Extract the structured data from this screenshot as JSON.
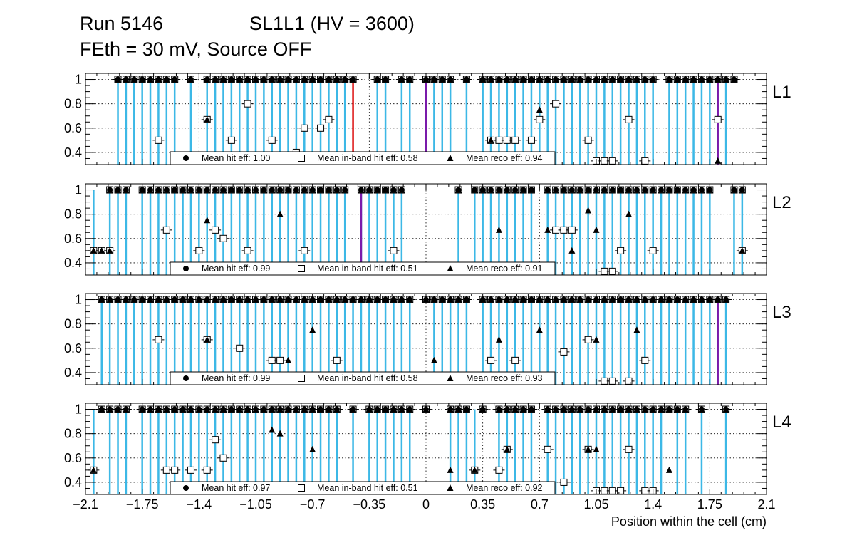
{
  "header": {
    "run": "Run 5146",
    "chamber": "SL1L1 (HV = 3600)",
    "conditions": "FEth = 30 mV, Source OFF"
  },
  "chart_data": {
    "type": "scatter",
    "xlabel": "Position within the cell (cm)",
    "xlim": [
      -2.1,
      2.1
    ],
    "xticks": [
      -2.1,
      -1.75,
      -1.4,
      -1.05,
      -0.7,
      -0.35,
      0,
      0.35,
      0.7,
      1.05,
      1.4,
      1.75,
      2.1
    ],
    "xtick_labels": [
      "−2.1",
      "−1.75",
      "−1.4",
      "−1.05",
      "−0.7",
      "−0.35",
      "0",
      "0.35",
      "0.7",
      "1.05",
      "1.4",
      "1.75",
      "2.1"
    ],
    "ylim": [
      0.3,
      1.05
    ],
    "yticks": [
      0.4,
      0.6,
      0.8,
      1
    ],
    "ytick_labels": [
      "0.4",
      "0.6",
      "0.8",
      "1"
    ],
    "grid": true,
    "colors": {
      "cyan": "#3cb8e6",
      "red": "#dd1111",
      "purple": "#7a1aaa"
    },
    "marker_legend": [
      {
        "marker": "filled-circle",
        "label": "Mean hit  eff:"
      },
      {
        "marker": "open-square",
        "label": "Mean in-band hit eff:"
      },
      {
        "marker": "filled-triangle",
        "label": "Mean reco eff:"
      }
    ],
    "panels": [
      {
        "label": "L1",
        "mean_hit_eff": "1.00",
        "mean_inband_eff": "0.58",
        "mean_reco_eff": "0.94",
        "hit_x": [
          -1.9,
          -1.85,
          -1.8,
          -1.75,
          -1.7,
          -1.65,
          -1.6,
          -1.55,
          -1.45,
          -1.35,
          -1.3,
          -1.25,
          -1.2,
          -1.15,
          -1.1,
          -1.05,
          -1.0,
          -0.95,
          -0.9,
          -0.85,
          -0.8,
          -0.75,
          -0.7,
          -0.65,
          -0.6,
          -0.55,
          -0.5,
          -0.45,
          -0.3,
          -0.25,
          -0.15,
          -0.1,
          0.0,
          0.05,
          0.1,
          0.15,
          0.25,
          0.35,
          0.4,
          0.45,
          0.5,
          0.55,
          0.6,
          0.65,
          0.7,
          0.75,
          0.8,
          0.85,
          0.9,
          0.95,
          1.0,
          1.05,
          1.1,
          1.15,
          1.2,
          1.25,
          1.3,
          1.35,
          1.4,
          1.5,
          1.55,
          1.6,
          1.65,
          1.7,
          1.75,
          1.8,
          1.85,
          1.9
        ],
        "square_pts": [
          [
            -1.65,
            0.5
          ],
          [
            -1.35,
            0.67
          ],
          [
            -1.2,
            0.5
          ],
          [
            -1.1,
            0.8
          ],
          [
            -0.95,
            0.5
          ],
          [
            -0.8,
            0.4
          ],
          [
            -0.75,
            0.6
          ],
          [
            -0.65,
            0.6
          ],
          [
            -0.6,
            0.67
          ],
          [
            0.4,
            0.5
          ],
          [
            0.45,
            0.5
          ],
          [
            0.5,
            0.5
          ],
          [
            0.55,
            0.5
          ],
          [
            0.65,
            0.5
          ],
          [
            0.7,
            0.67
          ],
          [
            0.8,
            0.8
          ],
          [
            1.0,
            0.5
          ],
          [
            1.05,
            0.33
          ],
          [
            1.1,
            0.33
          ],
          [
            1.15,
            0.33
          ],
          [
            1.25,
            0.67
          ],
          [
            1.35,
            0.33
          ],
          [
            1.8,
            0.67
          ]
        ],
        "tri_pts": [
          [
            -1.35,
            0.67
          ],
          [
            0.4,
            0.5
          ],
          [
            0.7,
            0.75
          ],
          [
            1.8,
            0.33
          ]
        ],
        "cyan_lines": [
          -1.9,
          -1.85,
          -1.8,
          -1.75,
          -1.7,
          -1.65,
          -1.6,
          -1.55,
          -1.45,
          -1.35,
          -1.3,
          -1.25,
          -1.2,
          -1.15,
          -1.1,
          -1.05,
          -1.0,
          -0.95,
          -0.9,
          -0.85,
          -0.8,
          -0.75,
          -0.7,
          -0.65,
          -0.6,
          -0.55,
          -0.5,
          -0.3,
          -0.25,
          -0.15,
          -0.1,
          0.05,
          0.1,
          0.15,
          0.25,
          0.35,
          0.4,
          0.45,
          0.5,
          0.55,
          0.6,
          0.65,
          0.7,
          0.75,
          0.8,
          0.85,
          0.9,
          0.95,
          1.0,
          1.05,
          1.1,
          1.15,
          1.2,
          1.25,
          1.3,
          1.35,
          1.4,
          1.5,
          1.55,
          1.6,
          1.65,
          1.7,
          1.75,
          1.85
        ],
        "red_lines": [
          -0.45
        ],
        "purple_lines": [
          0.0,
          1.8
        ]
      },
      {
        "label": "L2",
        "mean_hit_eff": "0.99",
        "mean_inband_eff": "0.51",
        "mean_reco_eff": "0.91",
        "hit_x": [
          -1.95,
          -1.9,
          -1.85,
          -1.75,
          -1.7,
          -1.65,
          -1.6,
          -1.55,
          -1.5,
          -1.45,
          -1.4,
          -1.35,
          -1.3,
          -1.25,
          -1.2,
          -1.15,
          -1.1,
          -1.05,
          -1.0,
          -0.95,
          -0.9,
          -0.85,
          -0.8,
          -0.75,
          -0.7,
          -0.65,
          -0.6,
          -0.55,
          -0.5,
          -0.4,
          -0.35,
          -0.3,
          -0.25,
          -0.2,
          -0.15,
          0.2,
          0.3,
          0.35,
          0.4,
          0.45,
          0.5,
          0.55,
          0.6,
          0.65,
          0.75,
          0.8,
          0.85,
          0.9,
          0.95,
          1.0,
          1.05,
          1.1,
          1.15,
          1.2,
          1.25,
          1.3,
          1.35,
          1.4,
          1.45,
          1.5,
          1.55,
          1.6,
          1.65,
          1.7,
          1.75,
          1.9,
          1.95
        ],
        "square_pts": [
          [
            -2.05,
            0.5
          ],
          [
            -2.0,
            0.5
          ],
          [
            -1.95,
            0.5
          ],
          [
            -1.6,
            0.67
          ],
          [
            -1.4,
            0.5
          ],
          [
            -1.3,
            0.67
          ],
          [
            -1.25,
            0.6
          ],
          [
            -1.1,
            0.5
          ],
          [
            -0.75,
            0.5
          ],
          [
            -0.2,
            0.5
          ],
          [
            0.8,
            0.67
          ],
          [
            0.85,
            0.67
          ],
          [
            0.9,
            0.67
          ],
          [
            1.1,
            0.33
          ],
          [
            1.15,
            0.33
          ],
          [
            1.2,
            0.5
          ],
          [
            1.4,
            0.5
          ],
          [
            1.95,
            0.5
          ]
        ],
        "tri_pts": [
          [
            -2.05,
            0.5
          ],
          [
            -2.0,
            0.5
          ],
          [
            -1.95,
            0.5
          ],
          [
            -1.35,
            0.75
          ],
          [
            -0.9,
            0.8
          ],
          [
            0.45,
            0.67
          ],
          [
            0.75,
            0.67
          ],
          [
            0.9,
            0.5
          ],
          [
            1.0,
            0.83
          ],
          [
            1.05,
            0.67
          ],
          [
            1.25,
            0.8
          ],
          [
            1.95,
            0.5
          ]
        ],
        "cyan_lines": [
          -2.05,
          -1.95,
          -1.9,
          -1.85,
          -1.75,
          -1.7,
          -1.65,
          -1.6,
          -1.55,
          -1.5,
          -1.45,
          -1.4,
          -1.35,
          -1.3,
          -1.25,
          -1.2,
          -1.15,
          -1.1,
          -1.05,
          -1.0,
          -0.95,
          -0.9,
          -0.85,
          -0.8,
          -0.75,
          -0.7,
          -0.65,
          -0.6,
          -0.55,
          -0.5,
          -0.4,
          -0.35,
          -0.3,
          -0.25,
          -0.2,
          -0.15,
          0.2,
          0.3,
          0.35,
          0.4,
          0.45,
          0.5,
          0.55,
          0.6,
          0.65,
          0.75,
          0.8,
          0.85,
          0.9,
          0.95,
          1.0,
          1.05,
          1.1,
          1.15,
          1.2,
          1.25,
          1.3,
          1.35,
          1.4,
          1.45,
          1.5,
          1.55,
          1.6,
          1.65,
          1.7,
          1.75,
          1.9,
          1.95
        ],
        "red_lines": [],
        "purple_lines": [
          -0.4
        ]
      },
      {
        "label": "L3",
        "mean_hit_eff": "0.99",
        "mean_inband_eff": "0.58",
        "mean_reco_eff": "0.93",
        "hit_x": [
          -2.0,
          -1.95,
          -1.9,
          -1.85,
          -1.8,
          -1.75,
          -1.7,
          -1.65,
          -1.6,
          -1.55,
          -1.5,
          -1.45,
          -1.4,
          -1.35,
          -1.3,
          -1.25,
          -1.2,
          -1.15,
          -1.1,
          -1.05,
          -1.0,
          -0.95,
          -0.9,
          -0.85,
          -0.8,
          -0.75,
          -0.7,
          -0.65,
          -0.6,
          -0.55,
          -0.5,
          -0.45,
          -0.4,
          -0.35,
          -0.3,
          -0.25,
          -0.2,
          -0.15,
          -0.1,
          0.0,
          0.05,
          0.1,
          0.15,
          0.2,
          0.25,
          0.35,
          0.4,
          0.45,
          0.5,
          0.55,
          0.6,
          0.65,
          0.7,
          0.75,
          0.8,
          0.85,
          0.9,
          0.95,
          1.0,
          1.05,
          1.1,
          1.15,
          1.2,
          1.25,
          1.3,
          1.35,
          1.4,
          1.45,
          1.5,
          1.55,
          1.6,
          1.65,
          1.7,
          1.75,
          1.8,
          1.85
        ],
        "square_pts": [
          [
            -1.65,
            0.67
          ],
          [
            -1.35,
            0.67
          ],
          [
            -1.15,
            0.6
          ],
          [
            -0.95,
            0.5
          ],
          [
            -0.9,
            0.5
          ],
          [
            -0.55,
            0.5
          ],
          [
            0.4,
            0.5
          ],
          [
            0.55,
            0.5
          ],
          [
            0.85,
            0.57
          ],
          [
            1.0,
            0.67
          ],
          [
            1.1,
            0.33
          ],
          [
            1.15,
            0.33
          ],
          [
            1.25,
            0.33
          ],
          [
            1.35,
            0.5
          ]
        ],
        "tri_pts": [
          [
            -1.35,
            0.67
          ],
          [
            -0.85,
            0.5
          ],
          [
            -0.7,
            0.75
          ],
          [
            0.05,
            0.5
          ],
          [
            0.45,
            0.67
          ],
          [
            0.7,
            0.75
          ],
          [
            1.05,
            0.67
          ],
          [
            1.3,
            0.75
          ]
        ],
        "cyan_lines": [
          -2.0,
          -1.95,
          -1.9,
          -1.85,
          -1.8,
          -1.75,
          -1.7,
          -1.65,
          -1.6,
          -1.55,
          -1.5,
          -1.45,
          -1.4,
          -1.35,
          -1.3,
          -1.25,
          -1.2,
          -1.15,
          -1.1,
          -1.05,
          -1.0,
          -0.95,
          -0.9,
          -0.85,
          -0.8,
          -0.75,
          -0.7,
          -0.65,
          -0.6,
          -0.55,
          -0.5,
          -0.45,
          -0.4,
          -0.35,
          -0.3,
          -0.25,
          -0.2,
          -0.15,
          -0.1,
          0.05,
          0.1,
          0.15,
          0.2,
          0.25,
          0.35,
          0.4,
          0.45,
          0.5,
          0.55,
          0.6,
          0.65,
          0.7,
          0.75,
          0.8,
          0.85,
          0.9,
          0.95,
          1.0,
          1.05,
          1.1,
          1.15,
          1.2,
          1.25,
          1.3,
          1.35,
          1.4,
          1.45,
          1.5,
          1.55,
          1.6,
          1.65,
          1.7,
          1.75,
          1.85
        ],
        "red_lines": [],
        "purple_lines": [
          1.8
        ]
      },
      {
        "label": "L4",
        "mean_hit_eff": "0.97",
        "mean_inband_eff": "0.51",
        "mean_reco_eff": "0.92",
        "hit_x": [
          -2.0,
          -1.95,
          -1.9,
          -1.85,
          -1.75,
          -1.7,
          -1.65,
          -1.6,
          -1.55,
          -1.5,
          -1.45,
          -1.4,
          -1.35,
          -1.3,
          -1.25,
          -1.2,
          -1.15,
          -1.1,
          -1.05,
          -1.0,
          -0.95,
          -0.9,
          -0.85,
          -0.8,
          -0.75,
          -0.7,
          -0.65,
          -0.6,
          -0.55,
          -0.45,
          -0.35,
          -0.3,
          -0.25,
          -0.2,
          -0.15,
          -0.1,
          0.0,
          0.15,
          0.2,
          0.25,
          0.35,
          0.45,
          0.5,
          0.55,
          0.6,
          0.65,
          0.75,
          0.8,
          0.85,
          0.9,
          0.95,
          1.0,
          1.05,
          1.1,
          1.15,
          1.2,
          1.25,
          1.3,
          1.35,
          1.4,
          1.45,
          1.5,
          1.55,
          1.6,
          1.7,
          1.85
        ],
        "square_pts": [
          [
            -2.05,
            0.5
          ],
          [
            -1.6,
            0.5
          ],
          [
            -1.55,
            0.5
          ],
          [
            -1.45,
            0.5
          ],
          [
            -1.35,
            0.5
          ],
          [
            -1.3,
            0.75
          ],
          [
            -1.25,
            0.6
          ],
          [
            0.3,
            0.5
          ],
          [
            0.45,
            0.5
          ],
          [
            0.5,
            0.67
          ],
          [
            0.75,
            0.67
          ],
          [
            0.85,
            0.4
          ],
          [
            1.0,
            0.67
          ],
          [
            1.05,
            0.33
          ],
          [
            1.1,
            0.33
          ],
          [
            1.15,
            0.33
          ],
          [
            1.2,
            0.33
          ],
          [
            1.25,
            0.67
          ],
          [
            1.35,
            0.33
          ],
          [
            1.4,
            0.33
          ]
        ],
        "tri_pts": [
          [
            -2.05,
            0.5
          ],
          [
            -0.95,
            0.83
          ],
          [
            -0.9,
            0.8
          ],
          [
            -0.7,
            0.67
          ],
          [
            0.15,
            0.5
          ],
          [
            0.3,
            0.5
          ],
          [
            0.5,
            0.67
          ],
          [
            1.0,
            0.67
          ],
          [
            1.05,
            0.67
          ],
          [
            1.5,
            0.5
          ]
        ],
        "cyan_lines": [
          -2.05,
          -1.95,
          -1.9,
          -1.85,
          -1.75,
          -1.7,
          -1.65,
          -1.6,
          -1.55,
          -1.5,
          -1.45,
          -1.4,
          -1.35,
          -1.3,
          -1.25,
          -1.2,
          -1.15,
          -1.1,
          -1.05,
          -1.0,
          -0.95,
          -0.9,
          -0.85,
          -0.8,
          -0.75,
          -0.7,
          -0.65,
          -0.6,
          -0.55,
          -0.45,
          -0.35,
          -0.3,
          -0.25,
          -0.2,
          -0.15,
          -0.1,
          0.15,
          0.2,
          0.25,
          0.3,
          0.45,
          0.5,
          0.55,
          0.6,
          0.65,
          0.75,
          0.8,
          0.85,
          0.9,
          0.95,
          1.0,
          1.05,
          1.1,
          1.15,
          1.2,
          1.25,
          1.3,
          1.35,
          1.4,
          1.45,
          1.55,
          1.6,
          1.7,
          1.85
        ],
        "red_lines": [],
        "purple_lines": []
      }
    ]
  }
}
